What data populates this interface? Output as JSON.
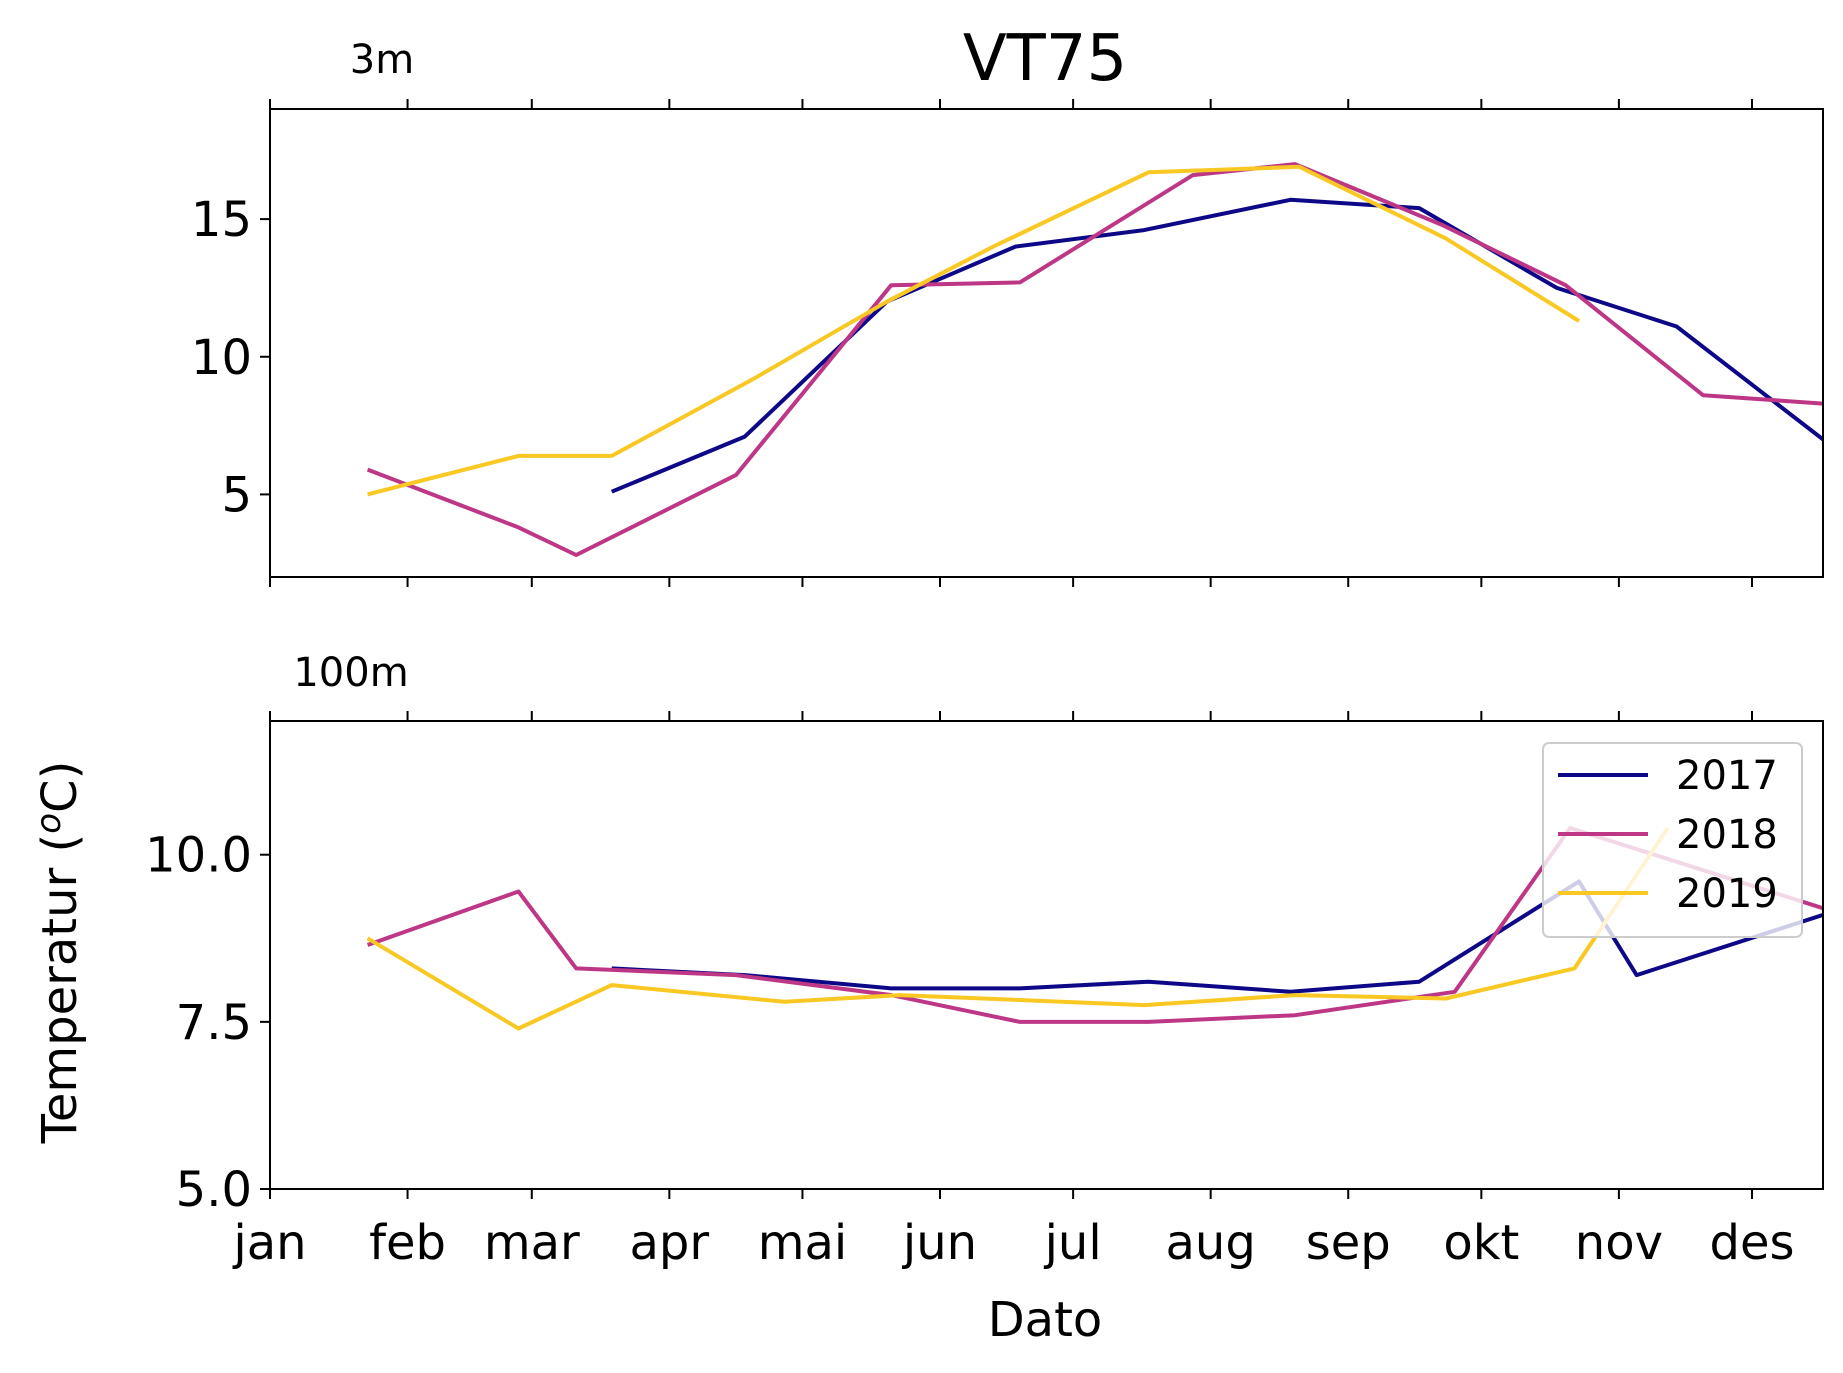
{
  "chart_data": {
    "type": "line",
    "title": "VT75",
    "xlabel": "Dato",
    "ylabel": "Temperatur (°C)",
    "x_ticks": [
      "jan",
      "feb",
      "mar",
      "apr",
      "mai",
      "jun",
      "jul",
      "aug",
      "sep",
      "okt",
      "nov",
      "des"
    ],
    "x_tick_days": [
      1,
      32,
      60,
      91,
      121,
      152,
      182,
      213,
      244,
      274,
      305,
      335
    ],
    "xlim_days": [
      1,
      351
    ],
    "legend": {
      "position": "upper right",
      "panel": "100m",
      "entries": [
        "2017",
        "2018",
        "2019"
      ]
    },
    "colors": {
      "2017": "#0d0887",
      "2018": "#bd3786",
      "2019": "#f9c823"
    },
    "panels": [
      {
        "label": "3m",
        "ylim": [
          2,
          19
        ],
        "yticks": [
          "5",
          "10",
          "15"
        ],
        "ytick_values": [
          5,
          10,
          15
        ],
        "series": [
          {
            "name": "2017",
            "x_days": [
              78,
              108,
              140,
              169,
              198,
              231,
              260,
              291,
              318,
              351
            ],
            "values": [
              5.1,
              7.1,
              12.0,
              14.0,
              14.6,
              15.7,
              15.4,
              12.5,
              11.1,
              7.0
            ]
          },
          {
            "name": "2018",
            "x_days": [
              23,
              57,
              70,
              106,
              141,
              170,
              209,
              232,
              265,
              293,
              324,
              351
            ],
            "values": [
              5.9,
              3.8,
              2.8,
              5.7,
              12.6,
              12.7,
              16.6,
              17.0,
              14.8,
              12.6,
              8.6,
              8.3
            ]
          },
          {
            "name": "2019",
            "x_days": [
              23,
              57,
              78,
              110,
              140,
              164,
              199,
              233,
              266,
              296
            ],
            "values": [
              5.0,
              6.4,
              6.4,
              9.2,
              12.0,
              14.0,
              16.7,
              16.9,
              14.3,
              11.3
            ]
          }
        ]
      },
      {
        "label": "100m",
        "ylim": [
          5,
          12
        ],
        "yticks": [
          "5.0",
          "7.5",
          "10.0"
        ],
        "ytick_values": [
          5.0,
          7.5,
          10.0
        ],
        "series": [
          {
            "name": "2017",
            "x_days": [
              78,
              108,
              141,
              170,
              199,
              231,
              260,
              296,
              309,
              351
            ],
            "values": [
              8.3,
              8.2,
              8.0,
              8.0,
              8.1,
              7.95,
              8.1,
              9.6,
              8.2,
              9.1
            ]
          },
          {
            "name": "2018",
            "x_days": [
              23,
              57,
              70,
              106,
              141,
              170,
              199,
              232,
              268,
              294,
              351
            ],
            "values": [
              8.65,
              9.45,
              8.3,
              8.2,
              7.9,
              7.5,
              7.5,
              7.6,
              7.95,
              10.4,
              9.2
            ]
          },
          {
            "name": "2019",
            "x_days": [
              23,
              57,
              78,
              117,
              143,
              198,
              232,
              266,
              295,
              316
            ],
            "values": [
              8.75,
              7.4,
              8.05,
              7.8,
              7.9,
              7.75,
              7.9,
              7.85,
              8.3,
              10.4
            ]
          }
        ]
      }
    ]
  }
}
